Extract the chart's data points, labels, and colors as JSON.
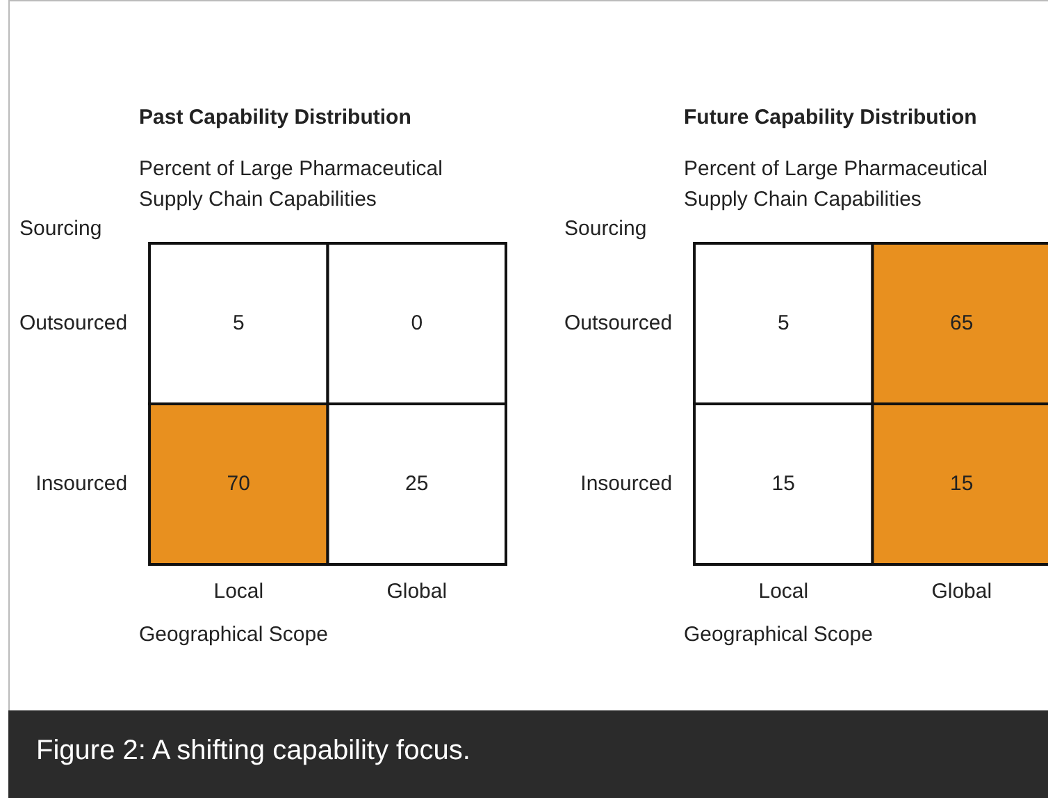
{
  "chart_data": [
    {
      "type": "heatmap",
      "title": "Past Capability Distribution",
      "subtitle": "Percent of Large Pharmaceutical Supply Chain Capabilities",
      "ylabel": "Sourcing",
      "xlabel": "Geographical Scope",
      "categories": [
        "Local",
        "Global"
      ],
      "y_categories": [
        "Outsourced",
        "Insourced"
      ],
      "cells": [
        [
          5,
          0
        ],
        [
          70,
          25
        ]
      ],
      "colors": [
        [
          "#ffffff",
          "#ffffff"
        ],
        [
          "#e8901f",
          "#ffffff"
        ]
      ],
      "data_labels": true,
      "annotations": [
        "Figure 2: A shifting capability focus."
      ]
    },
    {
      "type": "heatmap",
      "title": "Future Capability Distribution",
      "subtitle": "Percent of Large Pharmaceutical Supply Chain Capabilities",
      "ylabel": "Sourcing",
      "xlabel": "Geographical Scope",
      "categories": [
        "Local",
        "Global"
      ],
      "y_categories": [
        "Outsourced",
        "Insourced"
      ],
      "cells": [
        [
          5,
          65
        ],
        [
          15,
          15
        ]
      ],
      "colors": [
        [
          "#ffffff",
          "#e8901f"
        ],
        [
          "#ffffff",
          "#e8901f"
        ]
      ],
      "data_labels": true
    }
  ]
}
